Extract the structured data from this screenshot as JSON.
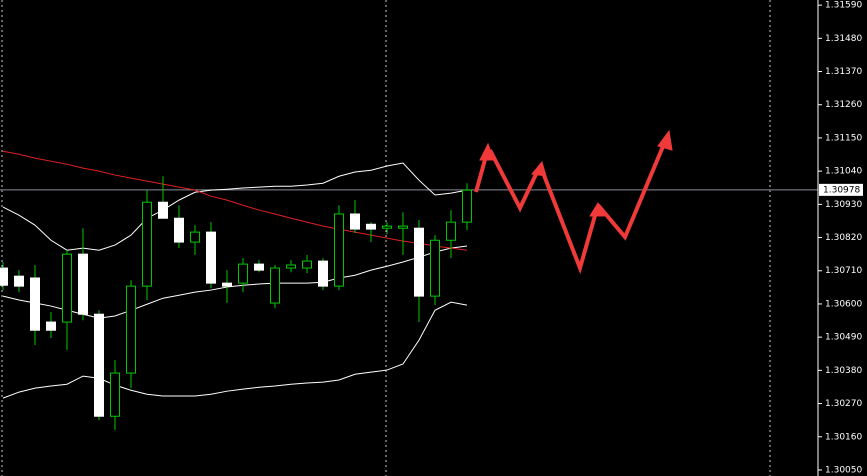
{
  "chart_data": {
    "type": "candlestick",
    "ylim": [
      1.3003,
      1.31607
    ],
    "yticks": [
      {
        "value": 1.3159,
        "label": "1.31590"
      },
      {
        "value": 1.3148,
        "label": "1.31480"
      },
      {
        "value": 1.3137,
        "label": "1.31370"
      },
      {
        "value": 1.3126,
        "label": "1.31260"
      },
      {
        "value": 1.3115,
        "label": "1.31150"
      },
      {
        "value": 1.3104,
        "label": "1.31040"
      },
      {
        "value": 1.3093,
        "label": "1.30930"
      },
      {
        "value": 1.3082,
        "label": "1.30820"
      },
      {
        "value": 1.3071,
        "label": "1.30710"
      },
      {
        "value": 1.306,
        "label": "1.30600"
      },
      {
        "value": 1.3049,
        "label": "1.30490"
      },
      {
        "value": 1.3038,
        "label": "1.30380"
      },
      {
        "value": 1.3027,
        "label": "1.30270"
      },
      {
        "value": 1.3016,
        "label": "1.30160"
      },
      {
        "value": 1.3005,
        "label": "1.30050"
      }
    ],
    "last_price": 1.30978,
    "up_color": "#00c800",
    "down_color": "#ffffff",
    "open": [
      1.30719,
      1.30692,
      1.30686,
      1.3054,
      1.3054,
      1.30765,
      1.30566,
      1.30228,
      1.30371,
      1.30659,
      1.30937,
      1.30884,
      1.30805,
      1.30838,
      1.30669,
      1.30669,
      1.30732,
      1.30603,
      1.30719,
      1.30719,
      1.30742,
      1.30659,
      1.30898,
      1.30864,
      1.30851,
      1.30851,
      1.30851,
      1.30626,
      1.30811,
      1.30871
    ],
    "high": [
      1.30739,
      1.30712,
      1.30729,
      1.30573,
      1.30778,
      1.30851,
      1.30579,
      1.30414,
      1.30679,
      1.30977,
      1.31023,
      1.30927,
      1.30861,
      1.30871,
      1.30712,
      1.30752,
      1.30745,
      1.30729,
      1.30745,
      1.30762,
      1.30752,
      1.30927,
      1.30944,
      1.30871,
      1.30871,
      1.30904,
      1.30878,
      1.30828,
      1.30911,
      1.31
    ],
    "low": [
      1.30646,
      1.30639,
      1.30464,
      1.30487,
      1.30447,
      1.30546,
      1.30215,
      1.30182,
      1.30321,
      1.30613,
      1.30884,
      1.30785,
      1.30762,
      1.30652,
      1.30603,
      1.30639,
      1.30705,
      1.30586,
      1.30705,
      1.30702,
      1.30646,
      1.30646,
      1.30835,
      1.30805,
      1.30831,
      1.30762,
      1.3054,
      1.30596,
      1.30752,
      1.30845
    ],
    "close": [
      1.30662,
      1.30659,
      1.30513,
      1.30513,
      1.30765,
      1.30566,
      1.30228,
      1.30371,
      1.30659,
      1.30937,
      1.30884,
      1.30805,
      1.30838,
      1.30669,
      1.30659,
      1.30732,
      1.30712,
      1.30719,
      1.30729,
      1.30742,
      1.30659,
      1.30898,
      1.30848,
      1.30848,
      1.30858,
      1.30858,
      1.30626,
      1.30811,
      1.30871,
      1.30977
    ],
    "lines": [
      {
        "color": "#ffffff",
        "values": [
          1.30921,
          1.30894,
          1.30861,
          1.30811,
          1.30778,
          1.30785,
          1.30778,
          1.30795,
          1.30828,
          1.30884,
          1.30911,
          1.30944,
          1.3097,
          1.30977,
          1.3098,
          1.30984,
          1.30987,
          1.3099,
          1.3099,
          1.30994,
          1.31,
          1.31023,
          1.31037,
          1.31043,
          1.31057,
          1.31067,
          1.3101,
          1.30961,
          1.30967,
          1.30977
        ]
      },
      {
        "color": "#ffffff",
        "values": [
          1.30626,
          1.30613,
          1.30603,
          1.30593,
          1.30579,
          1.30566,
          1.30553,
          1.3056,
          1.30579,
          1.30599,
          1.30619,
          1.30629,
          1.30639,
          1.30646,
          1.30656,
          1.30662,
          1.30666,
          1.30669,
          1.30669,
          1.30669,
          1.30672,
          1.30686,
          1.30695,
          1.30712,
          1.30725,
          1.30739,
          1.30755,
          1.30772,
          1.30785,
          1.30792
        ]
      },
      {
        "color": "#ffffff",
        "values": [
          1.30288,
          1.30308,
          1.30321,
          1.30328,
          1.30334,
          1.30361,
          1.30354,
          1.30331,
          1.30314,
          1.30301,
          1.30295,
          1.30295,
          1.30295,
          1.30301,
          1.30311,
          1.30318,
          1.30324,
          1.30328,
          1.30334,
          1.30338,
          1.30341,
          1.30348,
          1.30367,
          1.30374,
          1.30381,
          1.30401,
          1.3048,
          1.30579,
          1.30606,
          1.30596
        ]
      },
      {
        "color": "#e02020",
        "values": [
          1.31106,
          1.31096,
          1.31083,
          1.31073,
          1.31063,
          1.3105,
          1.3104,
          1.31027,
          1.31017,
          1.31007,
          1.30997,
          1.30987,
          1.30977,
          1.30957,
          1.30944,
          1.30927,
          1.30911,
          1.30898,
          1.30884,
          1.30871,
          1.30858,
          1.30848,
          1.30838,
          1.30828,
          1.30818,
          1.30808,
          1.30801,
          1.30792,
          1.30785,
          1.30778
        ]
      }
    ]
  }
}
